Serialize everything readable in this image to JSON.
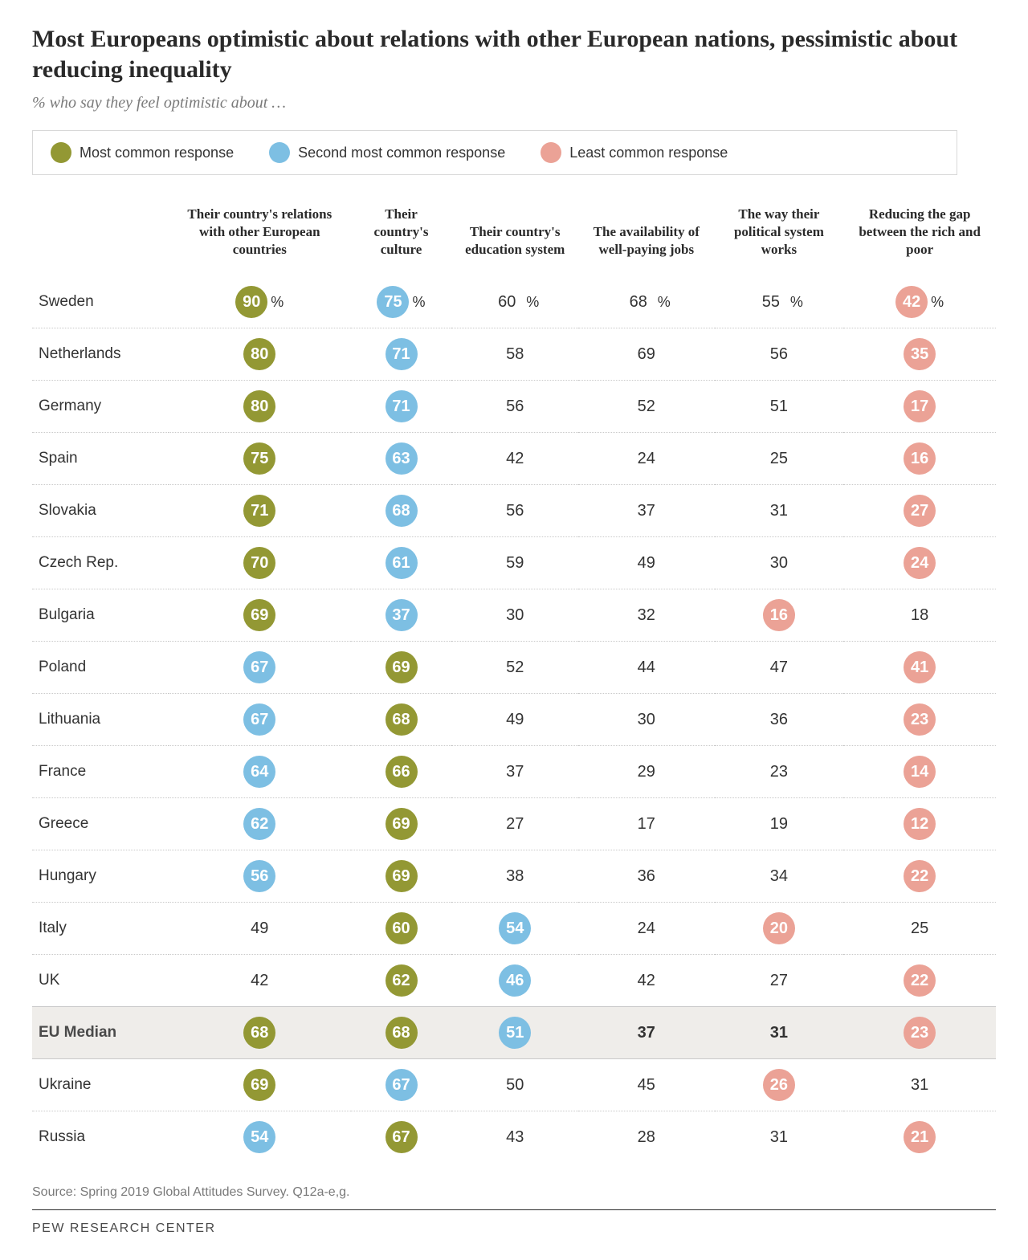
{
  "title": "Most Europeans optimistic about relations with other European nations, pessimistic about reducing inequality",
  "subtitle": "% who say they feel optimistic about …",
  "colors": {
    "most": "#939834",
    "second": "#7dbfe3",
    "least": "#eba296",
    "text": "#333333",
    "bg_median": "#efedea",
    "rule": "#c9c9c9"
  },
  "legend": [
    {
      "label": "Most common response",
      "key": "most"
    },
    {
      "label": "Second most common response",
      "key": "second"
    },
    {
      "label": "Least common response",
      "key": "least"
    }
  ],
  "columns": [
    "",
    "Their country's relations with other European countries",
    "Their country's culture",
    "Their country's education system",
    "The availability of well-paying jobs",
    "The way their political system works",
    "Reducing the gap between the rich and poor"
  ],
  "rows": [
    {
      "label": "Sweden",
      "cells": [
        {
          "v": 90,
          "t": "most",
          "s": "%"
        },
        {
          "v": 75,
          "t": "second",
          "s": "%"
        },
        {
          "v": 60,
          "t": "plain",
          "s": "%"
        },
        {
          "v": 68,
          "t": "plain",
          "s": "%"
        },
        {
          "v": 55,
          "t": "plain",
          "s": "%"
        },
        {
          "v": 42,
          "t": "least",
          "s": "%"
        }
      ]
    },
    {
      "label": "Netherlands",
      "cells": [
        {
          "v": 80,
          "t": "most"
        },
        {
          "v": 71,
          "t": "second"
        },
        {
          "v": 58,
          "t": "plain"
        },
        {
          "v": 69,
          "t": "plain"
        },
        {
          "v": 56,
          "t": "plain"
        },
        {
          "v": 35,
          "t": "least"
        }
      ]
    },
    {
      "label": "Germany",
      "cells": [
        {
          "v": 80,
          "t": "most"
        },
        {
          "v": 71,
          "t": "second"
        },
        {
          "v": 56,
          "t": "plain"
        },
        {
          "v": 52,
          "t": "plain"
        },
        {
          "v": 51,
          "t": "plain"
        },
        {
          "v": 17,
          "t": "least"
        }
      ]
    },
    {
      "label": "Spain",
      "cells": [
        {
          "v": 75,
          "t": "most"
        },
        {
          "v": 63,
          "t": "second"
        },
        {
          "v": 42,
          "t": "plain"
        },
        {
          "v": 24,
          "t": "plain"
        },
        {
          "v": 25,
          "t": "plain"
        },
        {
          "v": 16,
          "t": "least"
        }
      ]
    },
    {
      "label": "Slovakia",
      "cells": [
        {
          "v": 71,
          "t": "most"
        },
        {
          "v": 68,
          "t": "second"
        },
        {
          "v": 56,
          "t": "plain"
        },
        {
          "v": 37,
          "t": "plain"
        },
        {
          "v": 31,
          "t": "plain"
        },
        {
          "v": 27,
          "t": "least"
        }
      ]
    },
    {
      "label": "Czech Rep.",
      "cells": [
        {
          "v": 70,
          "t": "most"
        },
        {
          "v": 61,
          "t": "second"
        },
        {
          "v": 59,
          "t": "plain"
        },
        {
          "v": 49,
          "t": "plain"
        },
        {
          "v": 30,
          "t": "plain"
        },
        {
          "v": 24,
          "t": "least"
        }
      ]
    },
    {
      "label": "Bulgaria",
      "cells": [
        {
          "v": 69,
          "t": "most"
        },
        {
          "v": 37,
          "t": "second"
        },
        {
          "v": 30,
          "t": "plain"
        },
        {
          "v": 32,
          "t": "plain"
        },
        {
          "v": 16,
          "t": "least"
        },
        {
          "v": 18,
          "t": "plain"
        }
      ]
    },
    {
      "label": "Poland",
      "cells": [
        {
          "v": 67,
          "t": "second"
        },
        {
          "v": 69,
          "t": "most"
        },
        {
          "v": 52,
          "t": "plain"
        },
        {
          "v": 44,
          "t": "plain"
        },
        {
          "v": 47,
          "t": "plain"
        },
        {
          "v": 41,
          "t": "least"
        }
      ]
    },
    {
      "label": "Lithuania",
      "cells": [
        {
          "v": 67,
          "t": "second"
        },
        {
          "v": 68,
          "t": "most"
        },
        {
          "v": 49,
          "t": "plain"
        },
        {
          "v": 30,
          "t": "plain"
        },
        {
          "v": 36,
          "t": "plain"
        },
        {
          "v": 23,
          "t": "least"
        }
      ]
    },
    {
      "label": "France",
      "cells": [
        {
          "v": 64,
          "t": "second"
        },
        {
          "v": 66,
          "t": "most"
        },
        {
          "v": 37,
          "t": "plain"
        },
        {
          "v": 29,
          "t": "plain"
        },
        {
          "v": 23,
          "t": "plain"
        },
        {
          "v": 14,
          "t": "least"
        }
      ]
    },
    {
      "label": "Greece",
      "cells": [
        {
          "v": 62,
          "t": "second"
        },
        {
          "v": 69,
          "t": "most"
        },
        {
          "v": 27,
          "t": "plain"
        },
        {
          "v": 17,
          "t": "plain"
        },
        {
          "v": 19,
          "t": "plain"
        },
        {
          "v": 12,
          "t": "least"
        }
      ]
    },
    {
      "label": "Hungary",
      "cells": [
        {
          "v": 56,
          "t": "second"
        },
        {
          "v": 69,
          "t": "most"
        },
        {
          "v": 38,
          "t": "plain"
        },
        {
          "v": 36,
          "t": "plain"
        },
        {
          "v": 34,
          "t": "plain"
        },
        {
          "v": 22,
          "t": "least"
        }
      ]
    },
    {
      "label": "Italy",
      "cells": [
        {
          "v": 49,
          "t": "plain"
        },
        {
          "v": 60,
          "t": "most"
        },
        {
          "v": 54,
          "t": "second"
        },
        {
          "v": 24,
          "t": "plain"
        },
        {
          "v": 20,
          "t": "least"
        },
        {
          "v": 25,
          "t": "plain"
        }
      ]
    },
    {
      "label": "UK",
      "cells": [
        {
          "v": 42,
          "t": "plain"
        },
        {
          "v": 62,
          "t": "most"
        },
        {
          "v": 46,
          "t": "second"
        },
        {
          "v": 42,
          "t": "plain"
        },
        {
          "v": 27,
          "t": "plain"
        },
        {
          "v": 22,
          "t": "least"
        }
      ]
    },
    {
      "label": "EU Median",
      "median": true,
      "solidTop": true,
      "cells": [
        {
          "v": 68,
          "t": "most"
        },
        {
          "v": 68,
          "t": "most"
        },
        {
          "v": 51,
          "t": "second"
        },
        {
          "v": 37,
          "t": "plain"
        },
        {
          "v": 31,
          "t": "plain"
        },
        {
          "v": 23,
          "t": "least"
        }
      ]
    },
    {
      "label": "Ukraine",
      "solidTop": true,
      "cells": [
        {
          "v": 69,
          "t": "most"
        },
        {
          "v": 67,
          "t": "second"
        },
        {
          "v": 50,
          "t": "plain"
        },
        {
          "v": 45,
          "t": "plain"
        },
        {
          "v": 26,
          "t": "least"
        },
        {
          "v": 31,
          "t": "plain"
        }
      ]
    },
    {
      "label": "Russia",
      "cells": [
        {
          "v": 54,
          "t": "second"
        },
        {
          "v": 67,
          "t": "most"
        },
        {
          "v": 43,
          "t": "plain"
        },
        {
          "v": 28,
          "t": "plain"
        },
        {
          "v": 31,
          "t": "plain"
        },
        {
          "v": 21,
          "t": "least"
        }
      ]
    }
  ],
  "source": "Source: Spring 2019 Global Attitudes Survey. Q12a-e,g.",
  "brand": "PEW RESEARCH CENTER"
}
